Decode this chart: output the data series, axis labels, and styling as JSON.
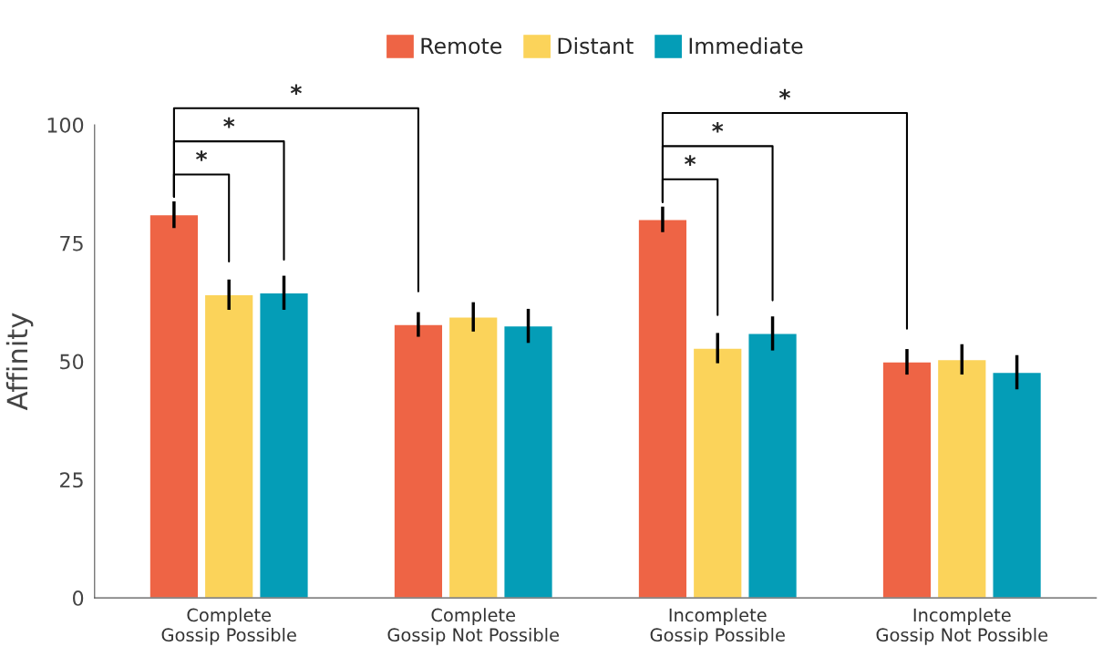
{
  "chart_data": {
    "type": "bar",
    "ylabel": "Affinity",
    "categories": [
      "Complete\nGossip Possible",
      "Complete\nGossip Not Possible",
      "Incomplete\nGossip Possible",
      "Incomplete\nGossip Not Possible"
    ],
    "series": [
      {
        "name": "Remote",
        "color": "#ee6445",
        "values": [
          81.0,
          57.8,
          80.0,
          49.9
        ],
        "errors": [
          2.8,
          2.6,
          2.7,
          2.7
        ]
      },
      {
        "name": "Distant",
        "color": "#fbd35a",
        "values": [
          64.1,
          59.4,
          52.8,
          50.4
        ],
        "errors": [
          3.2,
          3.1,
          3.2,
          3.2
        ]
      },
      {
        "name": "Immediate",
        "color": "#049db7",
        "values": [
          64.5,
          57.5,
          55.9,
          47.7
        ],
        "errors": [
          3.6,
          3.6,
          3.6,
          3.6
        ]
      }
    ],
    "ylim": [
      0,
      100
    ],
    "yticks": [
      0,
      25,
      50,
      75,
      100
    ],
    "grid": false,
    "legend": "top",
    "annotations": [
      "*",
      "*",
      "*",
      "*",
      "*",
      "*"
    ]
  }
}
